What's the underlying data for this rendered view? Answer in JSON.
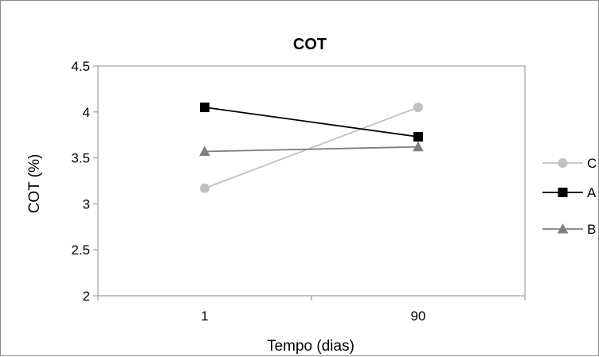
{
  "chart_data": {
    "type": "line",
    "title": "COT",
    "xlabel": "Tempo (dias)",
    "ylabel": "COT (%)",
    "categories": [
      "1",
      "90"
    ],
    "ylim": [
      2,
      4.5
    ],
    "yticks": [
      "2",
      "2.5",
      "3",
      "3.5",
      "4",
      "4.5"
    ],
    "grid": false,
    "legend_position": "right",
    "series": [
      {
        "name": "C",
        "values": [
          3.17,
          4.05
        ],
        "color": "#c0c0c0",
        "marker": "circle"
      },
      {
        "name": "A",
        "values": [
          4.05,
          3.73
        ],
        "color": "#000000",
        "marker": "square"
      },
      {
        "name": "B",
        "values": [
          3.57,
          3.62
        ],
        "color": "#7f7f7f",
        "marker": "triangle"
      }
    ]
  }
}
